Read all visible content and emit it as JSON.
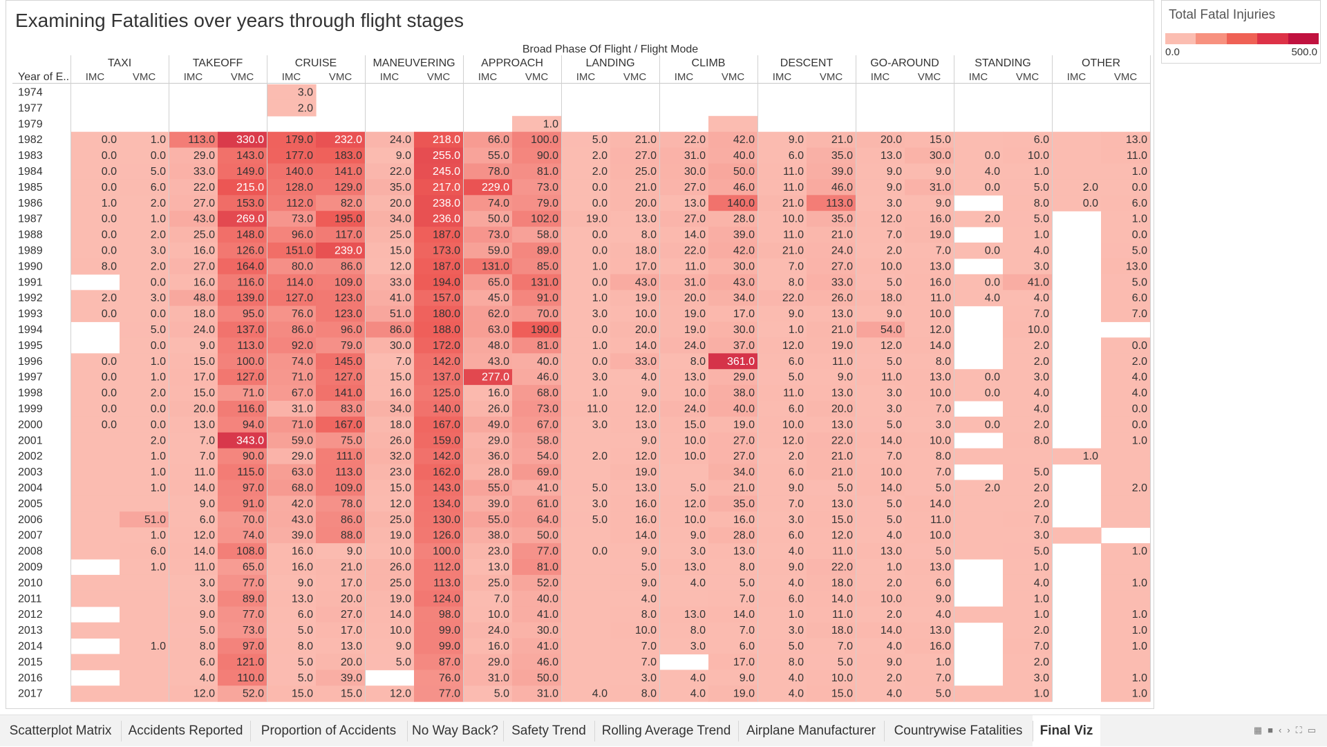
{
  "title": "Examining Fatalities over years through flight stages",
  "legend": {
    "title": "Total Fatal Injuries",
    "min_label": "0.0",
    "max_label": "500.0",
    "colors": [
      "#fbbdb1",
      "#f7917f",
      "#ef6155",
      "#dd3247",
      "#c0123f"
    ]
  },
  "chart_data": {
    "type": "heatmap",
    "title": "Examining Fatalities over years through flight stages",
    "column_header": "Broad Phase Of Flight  /  Flight Mode",
    "row_header": "Year of E..",
    "color_scale": {
      "min": 0,
      "max": 500
    },
    "phases": [
      "TAXI",
      "TAKEOFF",
      "CRUISE",
      "MANEUVERING",
      "APPROACH",
      "LANDING",
      "CLIMB",
      "DESCENT",
      "GO-AROUND",
      "STANDING",
      "OTHER"
    ],
    "modes": [
      "IMC",
      "VMC"
    ],
    "years": [
      "1974",
      "1977",
      "1979",
      "1982",
      "1983",
      "1984",
      "1985",
      "1986",
      "1987",
      "1988",
      "1989",
      "1990",
      "1991",
      "1992",
      "1993",
      "1994",
      "1995",
      "1996",
      "1997",
      "1998",
      "1999",
      "2000",
      "2001",
      "2002",
      "2003",
      "2004",
      "2005",
      "2006",
      "2007",
      "2008",
      "2009",
      "2010",
      "2011",
      "2012",
      "2013",
      "2014",
      "2015",
      "2016",
      "2017"
    ],
    "values": [
      [
        null,
        null,
        null,
        null,
        3,
        null,
        null,
        null,
        null,
        null,
        null,
        null,
        null,
        null,
        null,
        null,
        null,
        null,
        null,
        null,
        null,
        null
      ],
      [
        null,
        null,
        null,
        null,
        2,
        null,
        null,
        null,
        null,
        null,
        null,
        null,
        null,
        null,
        null,
        null,
        null,
        null,
        null,
        null,
        null,
        null
      ],
      [
        null,
        null,
        null,
        null,
        null,
        null,
        null,
        null,
        null,
        1,
        null,
        null,
        null,
        "",
        null,
        null,
        null,
        null,
        null,
        null,
        null,
        null
      ],
      [
        0,
        1,
        113,
        330,
        179,
        232,
        24,
        218,
        66,
        100,
        5,
        21,
        22,
        42,
        9,
        21,
        20,
        15,
        "",
        6,
        "",
        13
      ],
      [
        0,
        0,
        29,
        143,
        177,
        183,
        9,
        255,
        55,
        90,
        2,
        27,
        31,
        40,
        6,
        35,
        13,
        30,
        0,
        10,
        "",
        11
      ],
      [
        0,
        5,
        33,
        149,
        140,
        141,
        22,
        245,
        78,
        81,
        2,
        25,
        30,
        50,
        11,
        39,
        9,
        9,
        4,
        1,
        "",
        1
      ],
      [
        0,
        6,
        22,
        215,
        128,
        129,
        35,
        217,
        229,
        73,
        0,
        21,
        27,
        46,
        11,
        46,
        9,
        31,
        0,
        5,
        2,
        0
      ],
      [
        1,
        2,
        27,
        153,
        112,
        82,
        20,
        238,
        74,
        79,
        0,
        20,
        13,
        140,
        21,
        113,
        3,
        9,
        null,
        8,
        0,
        6
      ],
      [
        0,
        1,
        43,
        269,
        73,
        195,
        34,
        236,
        50,
        102,
        19,
        13,
        27,
        28,
        10,
        35,
        12,
        16,
        2,
        5,
        null,
        1
      ],
      [
        0,
        2,
        25,
        148,
        96,
        117,
        25,
        187,
        73,
        58,
        0,
        8,
        14,
        39,
        11,
        21,
        7,
        19,
        null,
        1,
        null,
        0
      ],
      [
        0,
        3,
        16,
        126,
        151,
        239,
        15,
        173,
        59,
        89,
        0,
        18,
        22,
        42,
        21,
        24,
        2,
        7,
        0,
        4,
        null,
        5
      ],
      [
        8,
        2,
        27,
        164,
        80,
        86,
        12,
        187,
        131,
        85,
        1,
        17,
        11,
        30,
        7,
        27,
        10,
        13,
        null,
        3,
        null,
        13
      ],
      [
        null,
        0,
        16,
        116,
        114,
        109,
        33,
        194,
        65,
        131,
        0,
        43,
        31,
        43,
        8,
        33,
        5,
        16,
        0,
        41,
        null,
        5
      ],
      [
        2,
        3,
        48,
        139,
        127,
        123,
        41,
        157,
        45,
        91,
        1,
        19,
        20,
        34,
        22,
        26,
        18,
        11,
        4,
        4,
        null,
        6
      ],
      [
        0,
        0,
        18,
        95,
        76,
        123,
        51,
        180,
        62,
        70,
        3,
        10,
        19,
        17,
        9,
        13,
        9,
        10,
        null,
        7,
        null,
        7
      ],
      [
        null,
        5,
        24,
        137,
        86,
        96,
        86,
        188,
        63,
        190,
        0,
        20,
        19,
        30,
        1,
        21,
        54,
        12,
        null,
        10,
        null,
        null
      ],
      [
        null,
        0,
        9,
        113,
        92,
        79,
        30,
        172,
        48,
        81,
        1,
        14,
        24,
        37,
        12,
        19,
        12,
        14,
        null,
        2,
        null,
        0
      ],
      [
        0,
        1,
        15,
        100,
        74,
        145,
        7,
        142,
        43,
        40,
        0,
        33,
        8,
        361,
        6,
        11,
        5,
        8,
        null,
        2,
        null,
        2
      ],
      [
        0,
        1,
        17,
        127,
        71,
        127,
        15,
        137,
        277,
        46,
        3,
        4,
        13,
        29,
        5,
        9,
        11,
        13,
        0,
        3,
        null,
        4
      ],
      [
        0,
        2,
        15,
        71,
        67,
        141,
        16,
        125,
        16,
        68,
        1,
        9,
        10,
        38,
        11,
        13,
        3,
        10,
        0,
        4,
        null,
        4
      ],
      [
        0,
        0,
        20,
        116,
        31,
        83,
        34,
        140,
        26,
        73,
        11,
        12,
        24,
        40,
        6,
        20,
        3,
        7,
        null,
        4,
        null,
        0
      ],
      [
        0,
        0,
        13,
        94,
        71,
        167,
        18,
        167,
        49,
        67,
        3,
        13,
        15,
        19,
        10,
        13,
        5,
        3,
        0,
        2,
        null,
        0
      ],
      [
        "",
        2,
        7,
        343,
        59,
        75,
        26,
        159,
        29,
        58,
        "",
        9,
        10,
        27,
        12,
        22,
        14,
        10,
        null,
        8,
        null,
        1
      ],
      [
        "",
        1,
        7,
        90,
        29,
        111,
        32,
        142,
        36,
        54,
        2,
        12,
        10,
        27,
        2,
        21,
        7,
        8,
        "",
        "",
        1,
        ""
      ],
      [
        "",
        1,
        11,
        115,
        63,
        113,
        23,
        162,
        28,
        69,
        "",
        19,
        "",
        34,
        6,
        21,
        10,
        7,
        null,
        5,
        null,
        ""
      ],
      [
        "",
        1,
        14,
        97,
        68,
        109,
        15,
        143,
        55,
        41,
        5,
        13,
        5,
        21,
        9,
        5,
        14,
        5,
        2,
        2,
        null,
        2
      ],
      [
        "",
        "",
        9,
        91,
        42,
        78,
        12,
        134,
        39,
        61,
        3,
        16,
        12,
        35,
        7,
        13,
        5,
        14,
        "",
        2,
        null,
        ""
      ],
      [
        "",
        51,
        6,
        70,
        43,
        86,
        25,
        130,
        55,
        64,
        5,
        16,
        10,
        16,
        3,
        15,
        5,
        11,
        "",
        7,
        null,
        ""
      ],
      [
        "",
        1,
        12,
        74,
        39,
        88,
        19,
        126,
        38,
        50,
        "",
        14,
        9,
        28,
        6,
        12,
        4,
        10,
        "",
        3,
        "",
        null
      ],
      [
        "",
        6,
        14,
        108,
        16,
        9,
        10,
        100,
        23,
        77,
        0,
        9,
        3,
        13,
        4,
        11,
        13,
        5,
        "",
        5,
        null,
        1
      ],
      [
        null,
        1,
        11,
        65,
        16,
        21,
        26,
        112,
        13,
        81,
        "",
        5,
        13,
        8,
        9,
        22,
        1,
        13,
        null,
        1,
        null,
        ""
      ],
      [
        "",
        "",
        3,
        77,
        9,
        17,
        25,
        113,
        25,
        52,
        "",
        9,
        4,
        5,
        4,
        18,
        2,
        6,
        null,
        4,
        null,
        1
      ],
      [
        "",
        "",
        3,
        89,
        13,
        20,
        19,
        124,
        7,
        40,
        "",
        4,
        "",
        7,
        6,
        14,
        10,
        9,
        null,
        1,
        null,
        ""
      ],
      [
        null,
        "",
        9,
        77,
        6,
        27,
        14,
        98,
        10,
        41,
        "",
        8,
        13,
        14,
        1,
        11,
        2,
        4,
        "",
        1,
        null,
        1
      ],
      [
        "",
        "",
        5,
        73,
        5,
        17,
        10,
        99,
        24,
        30,
        "",
        10,
        8,
        7,
        3,
        18,
        14,
        13,
        null,
        2,
        null,
        1
      ],
      [
        null,
        1,
        8,
        97,
        8,
        13,
        9,
        99,
        16,
        41,
        "",
        7,
        3,
        6,
        5,
        7,
        4,
        16,
        null,
        7,
        null,
        1
      ],
      [
        "",
        "",
        6,
        121,
        5,
        20,
        5,
        87,
        29,
        46,
        "",
        7,
        null,
        17,
        8,
        5,
        9,
        1,
        null,
        2,
        null,
        ""
      ],
      [
        null,
        "",
        4,
        110,
        5,
        39,
        null,
        76,
        31,
        50,
        "",
        3,
        4,
        9,
        4,
        10,
        2,
        7,
        null,
        3,
        null,
        1
      ],
      [
        "",
        "",
        12,
        52,
        15,
        15,
        12,
        77,
        5,
        31,
        4,
        8,
        4,
        19,
        4,
        15,
        4,
        5,
        "",
        1,
        null,
        1
      ]
    ]
  },
  "tabs": [
    {
      "label": "Scatterplot Matrix"
    },
    {
      "label": "Accidents Reported"
    },
    {
      "label": "Proportion of Accidents"
    },
    {
      "label": "No Way Back?"
    },
    {
      "label": "Safety Trend"
    },
    {
      "label": "Rolling Average Trend"
    },
    {
      "label": "Airplane Manufacturer"
    },
    {
      "label": "Countrywise Fatalities"
    },
    {
      "label": "Final Viz"
    }
  ]
}
